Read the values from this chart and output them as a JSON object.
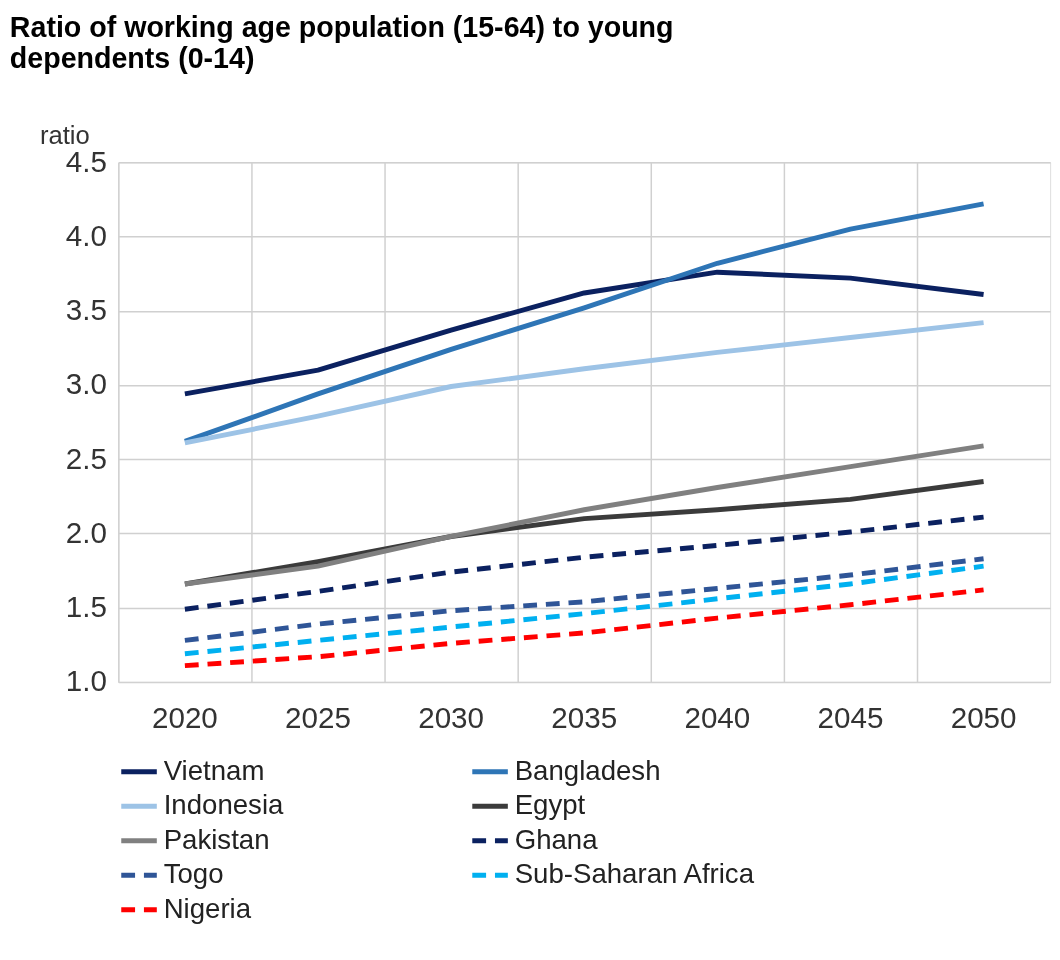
{
  "chart_data": {
    "type": "line",
    "title": "Ratio of working age population (15-64) to young dependents (0-14)",
    "ylabel": "ratio",
    "categories": [
      "2020",
      "2025",
      "2030",
      "2035",
      "2040",
      "2045",
      "2050"
    ],
    "ylim": [
      1,
      4.5
    ],
    "yticks": [
      {
        "value": 1,
        "label": "1.0"
      },
      {
        "value": 1.5,
        "label": "1.5"
      },
      {
        "value": 2,
        "label": "2.0"
      },
      {
        "value": 2.5,
        "label": "2.5"
      },
      {
        "value": 3,
        "label": "3.0"
      },
      {
        "value": 3.5,
        "label": "3.5"
      },
      {
        "value": 4,
        "label": "4.0"
      },
      {
        "value": 4.5,
        "label": "4.5"
      }
    ],
    "grid": true,
    "legend": "bottom",
    "marker": "none",
    "series": [
      {
        "name": "Vietnam",
        "color": "#0b2160",
        "line_style": "solid",
        "values": [
          2.94,
          3.1,
          3.37,
          3.62,
          3.76,
          3.72,
          3.61
        ]
      },
      {
        "name": "Bangladesh",
        "color": "#2e75b6",
        "line_style": "solid",
        "values": [
          2.62,
          2.94,
          3.24,
          3.52,
          3.82,
          4.05,
          4.22
        ]
      },
      {
        "name": "Indonesia",
        "color": "#9dc3e6",
        "line_style": "solid",
        "values": [
          2.61,
          2.79,
          2.99,
          3.11,
          3.22,
          3.32,
          3.42
        ]
      },
      {
        "name": "Egypt",
        "color": "#3b3b3b",
        "line_style": "solid",
        "values": [
          1.66,
          1.81,
          1.98,
          2.1,
          2.16,
          2.23,
          2.35
        ]
      },
      {
        "name": "Pakistan",
        "color": "#808080",
        "line_style": "solid",
        "values": [
          1.66,
          1.78,
          1.98,
          2.16,
          2.31,
          2.45,
          2.59
        ]
      },
      {
        "name": "Ghana",
        "color": "#0b2160",
        "line_style": "dashed",
        "values": [
          1.49,
          1.61,
          1.74,
          1.84,
          1.92,
          2.01,
          2.11
        ]
      },
      {
        "name": "Togo",
        "color": "#2f5597",
        "line_style": "dashed",
        "values": [
          1.28,
          1.39,
          1.48,
          1.54,
          1.63,
          1.72,
          1.83
        ]
      },
      {
        "name": "Sub-Saharan Africa",
        "color": "#00b0f0",
        "line_style": "dashed",
        "values": [
          1.19,
          1.28,
          1.37,
          1.46,
          1.56,
          1.66,
          1.78
        ]
      },
      {
        "name": "Nigeria",
        "color": "#ff0000",
        "line_style": "dashed",
        "values": [
          1.11,
          1.17,
          1.26,
          1.33,
          1.43,
          1.52,
          1.62
        ]
      }
    ]
  }
}
